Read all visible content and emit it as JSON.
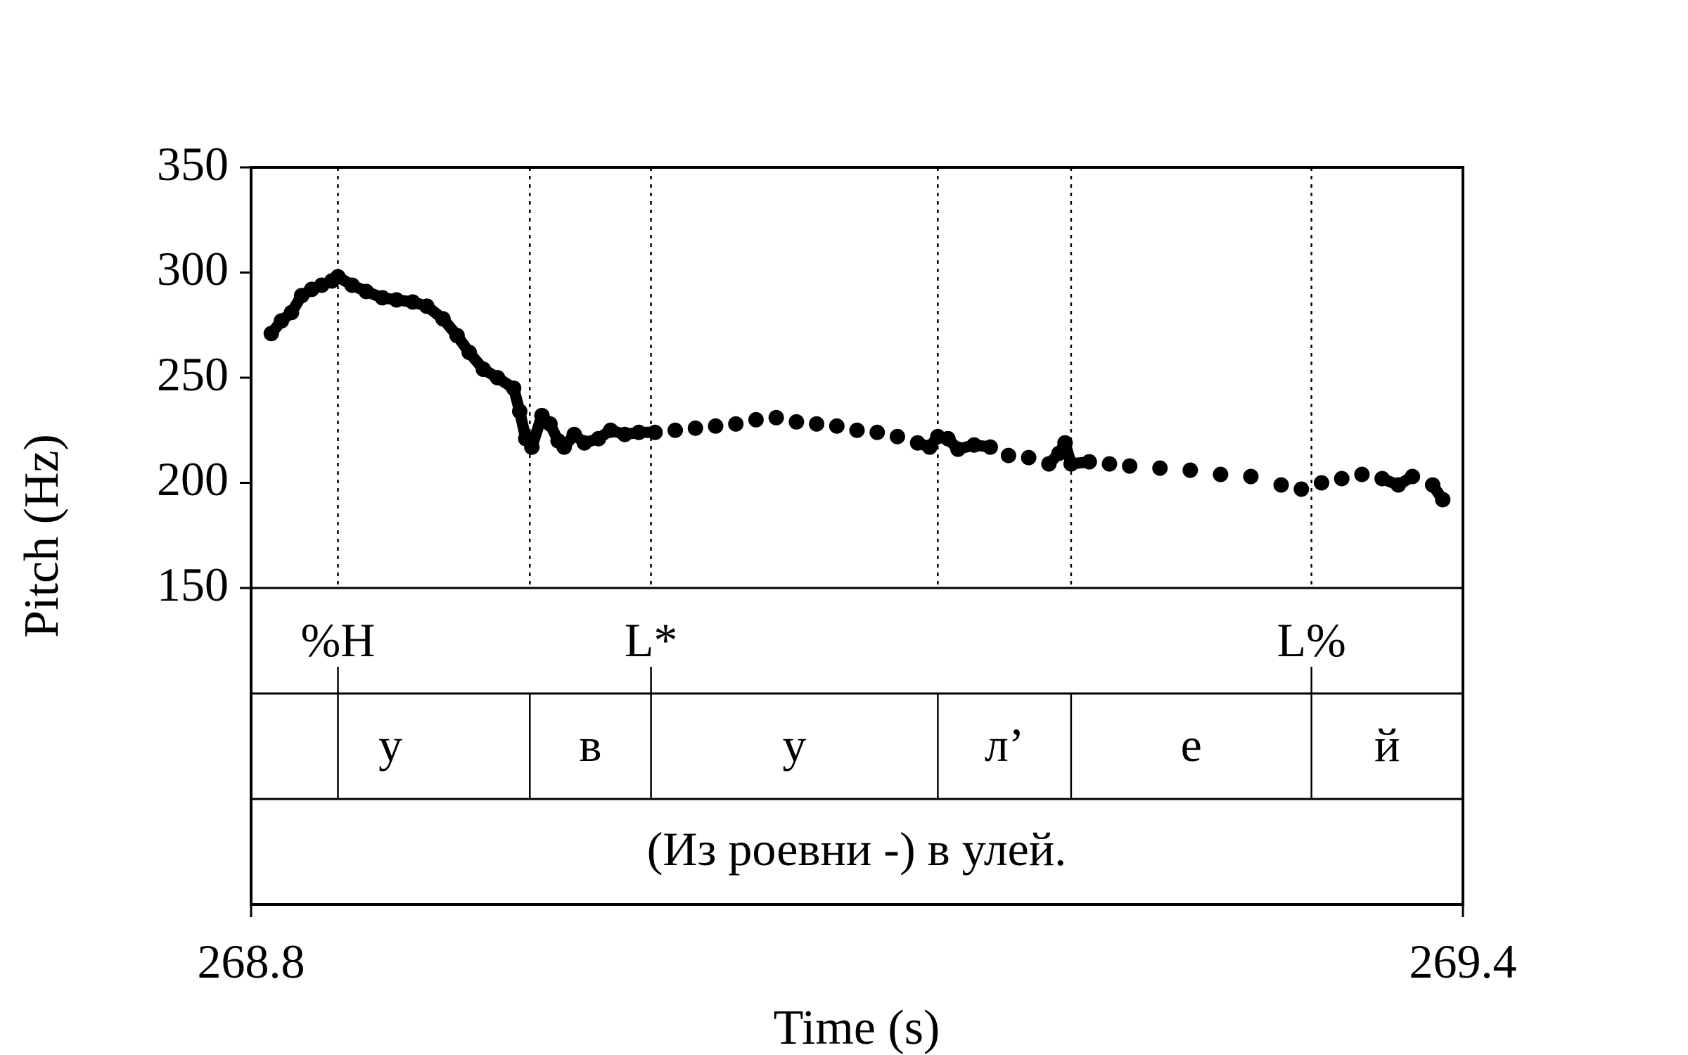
{
  "chart_data": {
    "type": "scatter",
    "xlabel": "Time (s)",
    "ylabel": "Pitch (Hz)",
    "xlim": [
      268.8,
      269.4
    ],
    "ylim": [
      150,
      350
    ],
    "x_ticks": [
      "268.8",
      "269.4"
    ],
    "y_ticks": [
      "350",
      "300",
      "250",
      "200",
      "150"
    ],
    "point_color": "#000000",
    "boundaries": [
      268.843,
      268.938,
      268.998,
      269.14,
      269.206,
      269.325
    ],
    "tones_tier": [
      {
        "label": "%H",
        "time": 268.843
      },
      {
        "label": "L*",
        "time": 268.998
      },
      {
        "label": "L%",
        "time": 269.325
      }
    ],
    "segments_tier": [
      {
        "label": "у",
        "start": 268.8,
        "end": 268.938
      },
      {
        "label": "в",
        "start": 268.938,
        "end": 268.998
      },
      {
        "label": "у",
        "start": 268.998,
        "end": 269.14
      },
      {
        "label": "л’",
        "start": 269.14,
        "end": 269.206
      },
      {
        "label": "е",
        "start": 269.206,
        "end": 269.325
      },
      {
        "label": "й",
        "start": 269.325,
        "end": 269.4
      }
    ],
    "phrase_tier": {
      "label": "(Из роевни -) в улей."
    },
    "pitch_contour": [
      [
        268.81,
        271
      ],
      [
        268.815,
        277
      ],
      [
        268.82,
        281
      ],
      [
        268.825,
        289
      ],
      [
        268.83,
        292
      ],
      [
        268.835,
        294
      ],
      [
        268.84,
        296
      ],
      [
        268.843,
        298
      ],
      [
        268.85,
        294
      ],
      [
        268.857,
        291
      ],
      [
        268.865,
        288
      ],
      [
        268.872,
        287
      ],
      [
        268.88,
        286
      ],
      [
        268.887,
        284
      ],
      [
        268.895,
        278
      ],
      [
        268.902,
        270
      ],
      [
        268.908,
        262
      ],
      [
        268.915,
        254
      ],
      [
        268.922,
        250
      ],
      [
        268.93,
        245
      ],
      [
        268.933,
        234
      ],
      [
        268.936,
        221
      ],
      [
        268.939,
        217
      ],
      [
        268.944,
        232
      ],
      [
        268.948,
        228
      ],
      [
        268.952,
        220
      ],
      [
        268.955,
        217
      ],
      [
        268.96,
        223
      ],
      [
        268.965,
        219
      ],
      [
        268.972,
        221
      ],
      [
        268.978,
        225
      ],
      [
        268.985,
        223
      ],
      [
        268.992,
        224
      ],
      [
        269.0,
        224
      ],
      [
        269.01,
        225
      ],
      [
        269.02,
        226
      ],
      [
        269.03,
        227
      ],
      [
        269.04,
        228
      ],
      [
        269.05,
        230
      ],
      [
        269.06,
        231
      ],
      [
        269.07,
        229
      ],
      [
        269.08,
        228
      ],
      [
        269.09,
        227
      ],
      [
        269.1,
        225
      ],
      [
        269.11,
        224
      ],
      [
        269.12,
        222
      ],
      [
        269.13,
        219
      ],
      [
        269.136,
        217
      ],
      [
        269.14,
        222
      ],
      [
        269.145,
        221
      ],
      [
        269.15,
        216
      ],
      [
        269.158,
        218
      ],
      [
        269.166,
        217
      ],
      [
        269.175,
        213
      ],
      [
        269.185,
        212
      ],
      [
        269.195,
        209
      ],
      [
        269.2,
        214
      ],
      [
        269.203,
        219
      ],
      [
        269.206,
        209
      ],
      [
        269.215,
        210
      ],
      [
        269.225,
        209
      ],
      [
        269.235,
        208
      ],
      [
        269.25,
        207
      ],
      [
        269.265,
        206
      ],
      [
        269.28,
        204
      ],
      [
        269.295,
        203
      ],
      [
        269.31,
        199
      ],
      [
        269.32,
        197
      ],
      [
        269.33,
        200
      ],
      [
        269.34,
        202
      ],
      [
        269.35,
        204
      ],
      [
        269.36,
        202
      ],
      [
        269.368,
        199
      ],
      [
        269.375,
        203
      ],
      [
        269.385,
        199
      ],
      [
        269.39,
        192
      ]
    ]
  }
}
